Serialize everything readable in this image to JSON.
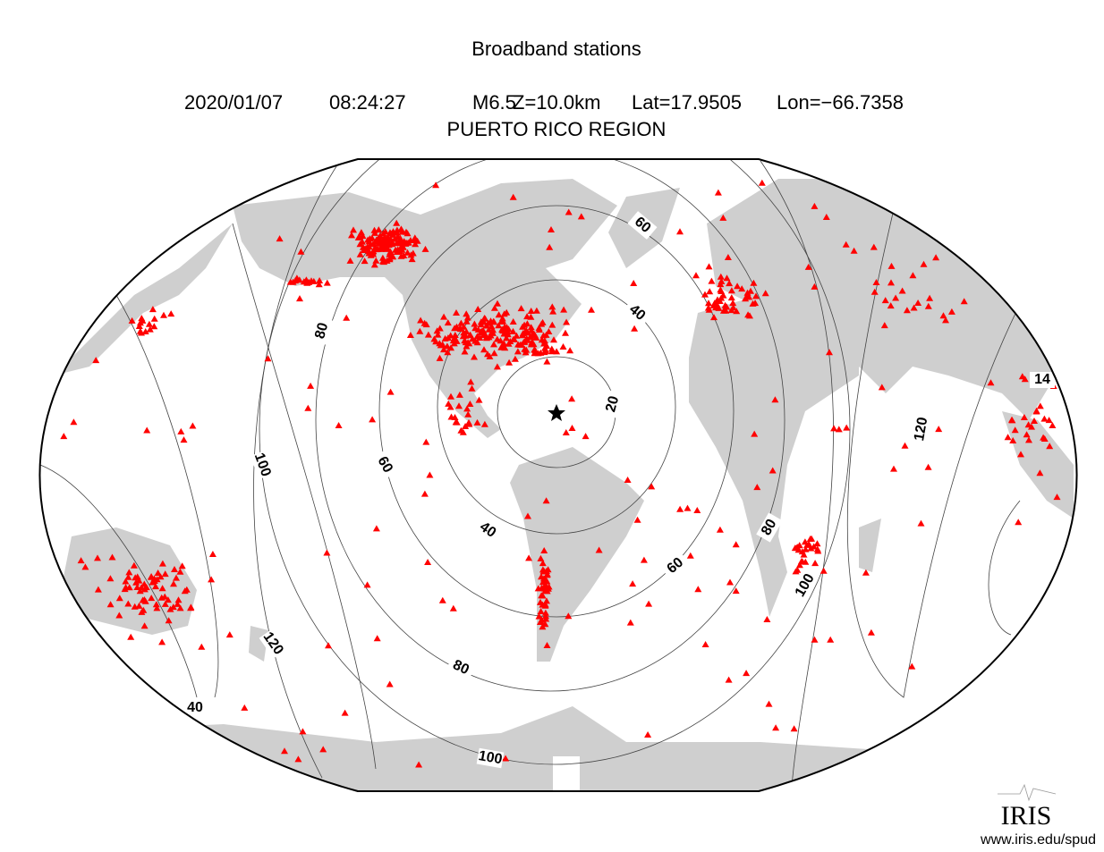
{
  "header": {
    "title": "Broadband stations",
    "date": "2020/01/07",
    "time": "08:24:27",
    "magnitude": "M6.5",
    "depth": "Z=10.0km",
    "lat": "Lat=17.9505",
    "lon": "Lon=−66.7358",
    "region": "PUERTO RICO REGION"
  },
  "contour_labels": [
    "20",
    "40",
    "40",
    "60",
    "60",
    "60",
    "80",
    "80",
    "80",
    "100",
    "100",
    "100",
    "120",
    "120",
    "14",
    "40"
  ],
  "logo": {
    "name": "IRIS",
    "url": "www.iris.edu/spud"
  }
}
